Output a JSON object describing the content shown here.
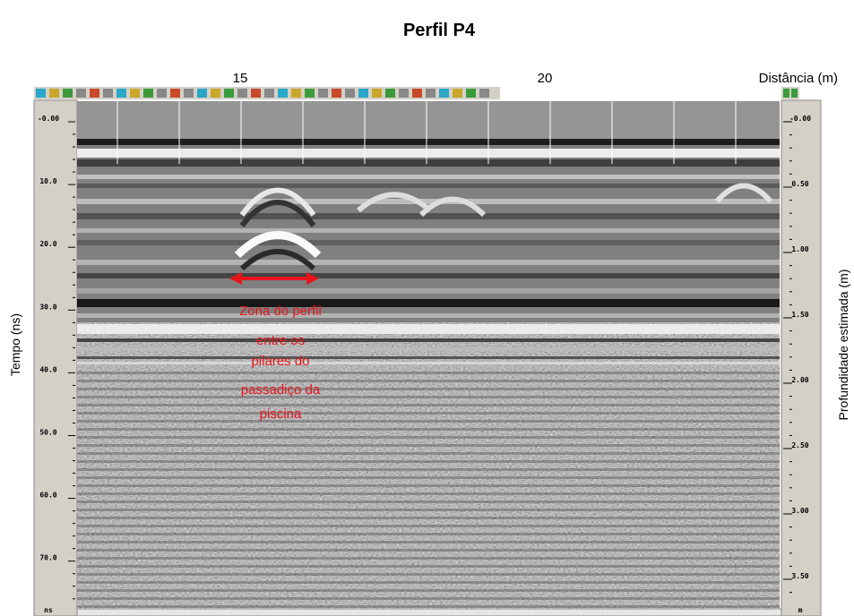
{
  "title": "Perfil P4",
  "x_axis": {
    "label": "Distância (m)",
    "ticks": [
      "15",
      "20"
    ]
  },
  "left_axis": {
    "label": "Tempo (ns)",
    "ticks": [
      "-0.00",
      "10.0",
      "20.0",
      "30.0",
      "40.0",
      "50.0",
      "60.0",
      "70.0"
    ],
    "unit": "ns"
  },
  "right_axis": {
    "label": "Profundidade estimada (m)",
    "ticks": [
      "-0.00",
      "0.50",
      "1.00",
      "1.50",
      "2.00",
      "2.50",
      "3.00",
      "3.50"
    ],
    "unit": "m"
  },
  "annotation": {
    "lines": [
      "Zona do perfil",
      "entre os",
      "pilares do",
      "passadiço da",
      "piscina"
    ]
  }
}
